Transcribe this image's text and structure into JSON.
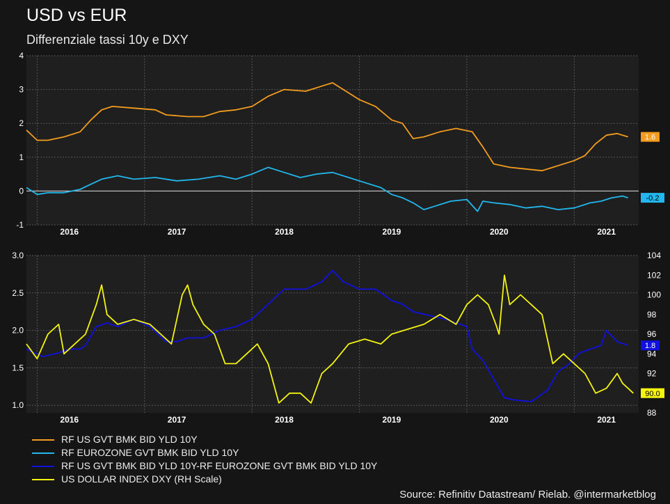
{
  "title": "USD vs EUR",
  "subtitle": "Differenziale tassi 10y e DXY",
  "source": "Source: Refinitiv Datastream/ Rielab. @intermarketblog",
  "colors": {
    "us_10y": "#f39c1e",
    "eu_10y": "#22b8ee",
    "spread": "#1010e0",
    "dxy": "#f4f410",
    "background": "#151515",
    "plot_background": "#1f1f1f",
    "grid": "#555555"
  },
  "legend": [
    {
      "label": "RF US GVT BMK BID YLD 10Y",
      "color": "#f39c1e"
    },
    {
      "label": "RF EUROZONE GVT BMK BID YLD 10Y",
      "color": "#22b8ee"
    },
    {
      "label": "RF US GVT BMK BID YLD 10Y-RF EUROZONE GVT BMK BID YLD 10Y",
      "color": "#1010e0"
    },
    {
      "label": "US DOLLAR INDEX DXY (RH Scale)",
      "color": "#f4f410"
    }
  ],
  "chart_data": [
    {
      "type": "line",
      "panel": "top",
      "x_ticks": [
        "2016",
        "2017",
        "2018",
        "2019",
        "2020",
        "2021"
      ],
      "xlim": [
        2015.6,
        2021.3
      ],
      "ylim": [
        -1,
        4
      ],
      "y_ticks": [
        "-1",
        "0",
        "1",
        "2",
        "3",
        "4"
      ],
      "grid": true,
      "zero_line": true,
      "series": [
        {
          "name": "RF US GVT BMK BID YLD 10Y",
          "color": "#f39c1e",
          "last_value_label": "1.6",
          "points": [
            [
              2015.6,
              1.8
            ],
            [
              2015.7,
              1.5
            ],
            [
              2015.8,
              1.5
            ],
            [
              2015.95,
              1.6
            ],
            [
              2016.1,
              1.75
            ],
            [
              2016.2,
              2.1
            ],
            [
              2016.3,
              2.4
            ],
            [
              2016.4,
              2.5
            ],
            [
              2016.6,
              2.45
            ],
            [
              2016.8,
              2.4
            ],
            [
              2016.9,
              2.25
            ],
            [
              2017.1,
              2.2
            ],
            [
              2017.25,
              2.2
            ],
            [
              2017.4,
              2.35
            ],
            [
              2017.55,
              2.4
            ],
            [
              2017.7,
              2.5
            ],
            [
              2017.85,
              2.8
            ],
            [
              2018.0,
              3.0
            ],
            [
              2018.2,
              2.95
            ],
            [
              2018.35,
              3.1
            ],
            [
              2018.45,
              3.2
            ],
            [
              2018.55,
              3.0
            ],
            [
              2018.7,
              2.7
            ],
            [
              2018.85,
              2.5
            ],
            [
              2019.0,
              2.1
            ],
            [
              2019.1,
              2.0
            ],
            [
              2019.2,
              1.55
            ],
            [
              2019.3,
              1.6
            ],
            [
              2019.45,
              1.75
            ],
            [
              2019.6,
              1.85
            ],
            [
              2019.75,
              1.75
            ],
            [
              2019.85,
              1.3
            ],
            [
              2019.95,
              0.8
            ],
            [
              2020.1,
              0.7
            ],
            [
              2020.25,
              0.65
            ],
            [
              2020.4,
              0.6
            ],
            [
              2020.5,
              0.7
            ],
            [
              2020.7,
              0.9
            ],
            [
              2020.8,
              1.05
            ],
            [
              2020.9,
              1.4
            ],
            [
              2021.0,
              1.65
            ],
            [
              2021.1,
              1.7
            ],
            [
              2021.2,
              1.6
            ]
          ]
        },
        {
          "name": "RF EUROZONE GVT BMK BID YLD 10Y",
          "color": "#22b8ee",
          "last_value_label": "-0.2",
          "points": [
            [
              2015.6,
              0.1
            ],
            [
              2015.7,
              -0.1
            ],
            [
              2015.8,
              -0.05
            ],
            [
              2015.95,
              -0.05
            ],
            [
              2016.1,
              0.05
            ],
            [
              2016.2,
              0.2
            ],
            [
              2016.3,
              0.35
            ],
            [
              2016.45,
              0.45
            ],
            [
              2016.6,
              0.35
            ],
            [
              2016.8,
              0.4
            ],
            [
              2017.0,
              0.3
            ],
            [
              2017.2,
              0.35
            ],
            [
              2017.4,
              0.45
            ],
            [
              2017.55,
              0.35
            ],
            [
              2017.7,
              0.5
            ],
            [
              2017.85,
              0.7
            ],
            [
              2018.0,
              0.55
            ],
            [
              2018.15,
              0.4
            ],
            [
              2018.3,
              0.5
            ],
            [
              2018.45,
              0.55
            ],
            [
              2018.6,
              0.4
            ],
            [
              2018.75,
              0.25
            ],
            [
              2018.9,
              0.1
            ],
            [
              2019.0,
              -0.1
            ],
            [
              2019.1,
              -0.2
            ],
            [
              2019.2,
              -0.35
            ],
            [
              2019.3,
              -0.55
            ],
            [
              2019.4,
              -0.45
            ],
            [
              2019.55,
              -0.3
            ],
            [
              2019.7,
              -0.25
            ],
            [
              2019.8,
              -0.6
            ],
            [
              2019.85,
              -0.3
            ],
            [
              2019.95,
              -0.35
            ],
            [
              2020.1,
              -0.4
            ],
            [
              2020.25,
              -0.5
            ],
            [
              2020.4,
              -0.45
            ],
            [
              2020.55,
              -0.55
            ],
            [
              2020.7,
              -0.5
            ],
            [
              2020.85,
              -0.35
            ],
            [
              2020.95,
              -0.3
            ],
            [
              2021.05,
              -0.2
            ],
            [
              2021.15,
              -0.15
            ],
            [
              2021.2,
              -0.2
            ]
          ]
        }
      ]
    },
    {
      "type": "line",
      "panel": "bottom",
      "x_ticks": [
        "2016",
        "2017",
        "2018",
        "2019",
        "2020",
        "2021"
      ],
      "xlim": [
        2015.6,
        2021.3
      ],
      "ylim_left": [
        0.9,
        3.0
      ],
      "y_ticks_left": [
        "1.0",
        "1.5",
        "2.0",
        "2.5",
        "3.0"
      ],
      "ylim_right": [
        88,
        104
      ],
      "y_ticks_right": [
        "88",
        "90",
        "92",
        "94",
        "96",
        "98",
        "100",
        "102",
        "104"
      ],
      "grid": true,
      "series": [
        {
          "name": "RF US GVT BMK BID YLD 10Y-RF EUROZONE GVT BMK BID YLD 10Y",
          "color": "#1010e0",
          "axis": "left",
          "last_value_label": "1.8",
          "points": [
            [
              2015.6,
              1.75
            ],
            [
              2015.75,
              1.65
            ],
            [
              2015.9,
              1.7
            ],
            [
              2016.0,
              1.75
            ],
            [
              2016.1,
              1.75
            ],
            [
              2016.15,
              1.8
            ],
            [
              2016.25,
              2.05
            ],
            [
              2016.35,
              2.1
            ],
            [
              2016.45,
              2.05
            ],
            [
              2016.6,
              2.15
            ],
            [
              2016.75,
              2.05
            ],
            [
              2016.9,
              1.85
            ],
            [
              2017.0,
              1.85
            ],
            [
              2017.1,
              1.9
            ],
            [
              2017.25,
              1.9
            ],
            [
              2017.4,
              2.0
            ],
            [
              2017.55,
              2.05
            ],
            [
              2017.7,
              2.15
            ],
            [
              2017.85,
              2.35
            ],
            [
              2018.0,
              2.55
            ],
            [
              2018.2,
              2.55
            ],
            [
              2018.35,
              2.65
            ],
            [
              2018.45,
              2.8
            ],
            [
              2018.55,
              2.65
            ],
            [
              2018.7,
              2.55
            ],
            [
              2018.85,
              2.55
            ],
            [
              2019.0,
              2.4
            ],
            [
              2019.1,
              2.35
            ],
            [
              2019.2,
              2.25
            ],
            [
              2019.35,
              2.2
            ],
            [
              2019.5,
              2.15
            ],
            [
              2019.6,
              2.1
            ],
            [
              2019.7,
              2.05
            ],
            [
              2019.75,
              1.75
            ],
            [
              2019.85,
              1.6
            ],
            [
              2019.95,
              1.35
            ],
            [
              2020.05,
              1.1
            ],
            [
              2020.15,
              1.07
            ],
            [
              2020.3,
              1.05
            ],
            [
              2020.45,
              1.2
            ],
            [
              2020.55,
              1.45
            ],
            [
              2020.65,
              1.55
            ],
            [
              2020.75,
              1.7
            ],
            [
              2020.85,
              1.75
            ],
            [
              2020.95,
              1.8
            ],
            [
              2021.0,
              2.0
            ],
            [
              2021.1,
              1.85
            ],
            [
              2021.2,
              1.8
            ]
          ]
        },
        {
          "name": "US DOLLAR INDEX DXY (RH Scale)",
          "color": "#f4f410",
          "axis": "right",
          "last_value_label": "90.0",
          "points": [
            [
              2015.6,
              95
            ],
            [
              2015.7,
              93.5
            ],
            [
              2015.8,
              96
            ],
            [
              2015.9,
              97
            ],
            [
              2015.95,
              94
            ],
            [
              2016.05,
              95
            ],
            [
              2016.15,
              96
            ],
            [
              2016.25,
              99
            ],
            [
              2016.3,
              101
            ],
            [
              2016.35,
              98
            ],
            [
              2016.45,
              97
            ],
            [
              2016.6,
              97.5
            ],
            [
              2016.75,
              97
            ],
            [
              2016.85,
              96
            ],
            [
              2016.95,
              95
            ],
            [
              2017.05,
              100
            ],
            [
              2017.1,
              101
            ],
            [
              2017.15,
              99
            ],
            [
              2017.25,
              97
            ],
            [
              2017.35,
              96
            ],
            [
              2017.45,
              93
            ],
            [
              2017.55,
              93
            ],
            [
              2017.65,
              94
            ],
            [
              2017.75,
              95
            ],
            [
              2017.85,
              93
            ],
            [
              2017.95,
              89
            ],
            [
              2018.05,
              90
            ],
            [
              2018.15,
              90
            ],
            [
              2018.25,
              89
            ],
            [
              2018.35,
              92
            ],
            [
              2018.45,
              93
            ],
            [
              2018.6,
              95
            ],
            [
              2018.75,
              95.5
            ],
            [
              2018.9,
              95
            ],
            [
              2019.0,
              96
            ],
            [
              2019.15,
              96.5
            ],
            [
              2019.3,
              97
            ],
            [
              2019.45,
              98
            ],
            [
              2019.6,
              97
            ],
            [
              2019.7,
              99
            ],
            [
              2019.8,
              100
            ],
            [
              2019.9,
              99
            ],
            [
              2019.97,
              97
            ],
            [
              2020.0,
              96
            ],
            [
              2020.05,
              102
            ],
            [
              2020.1,
              99
            ],
            [
              2020.2,
              100
            ],
            [
              2020.3,
              99
            ],
            [
              2020.4,
              98
            ],
            [
              2020.5,
              93
            ],
            [
              2020.6,
              94
            ],
            [
              2020.7,
              93
            ],
            [
              2020.8,
              92
            ],
            [
              2020.9,
              90
            ],
            [
              2021.0,
              90.5
            ],
            [
              2021.1,
              92
            ],
            [
              2021.15,
              91
            ],
            [
              2021.2,
              90.5
            ],
            [
              2021.25,
              90
            ]
          ]
        }
      ]
    }
  ]
}
